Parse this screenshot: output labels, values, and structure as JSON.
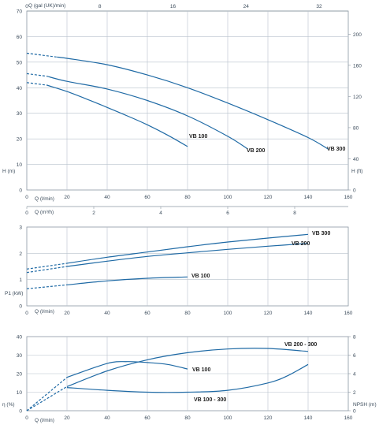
{
  "colors": {
    "curve": "#1f6aa5",
    "grid": "#b8c2cc",
    "text": "#3a4a5a"
  },
  "chart_data": [
    {
      "type": "line",
      "xlabel": "Q (l/min)",
      "ylabel": "H (m)",
      "y2label": "H (ft)",
      "top_xlabel": "Q (gal (UK)/min)",
      "bottom2_xlabel": "Q (m³/h)",
      "xlim": [
        0,
        160
      ],
      "ylim": [
        0,
        70
      ],
      "x_ticks": [
        "0",
        "20",
        "40",
        "60",
        "80",
        "100",
        "120",
        "140",
        "160"
      ],
      "y_ticks": [
        "0",
        "10",
        "20",
        "30",
        "40",
        "50",
        "60",
        "70"
      ],
      "y2_ticks": [
        "0",
        "40",
        "80",
        "120",
        "160",
        "200"
      ],
      "top_ticks": [
        "0",
        "8",
        "16",
        "24",
        "32"
      ],
      "bottom2_ticks": [
        "0",
        "2",
        "4",
        "6",
        "8"
      ],
      "series": [
        {
          "name": "VB 100",
          "dashed_until": 10,
          "x": [
            0,
            10,
            20,
            30,
            40,
            50,
            60,
            70,
            80
          ],
          "y": [
            42,
            41,
            38.5,
            35.5,
            32.3,
            29,
            25.5,
            21.5,
            17
          ]
        },
        {
          "name": "VB 200",
          "dashed_until": 10,
          "x": [
            0,
            10,
            20,
            40,
            60,
            80,
            100,
            110
          ],
          "y": [
            45.5,
            44.5,
            42.5,
            39.5,
            35,
            29,
            21,
            16
          ]
        },
        {
          "name": "VB 300",
          "dashed_until": 15,
          "x": [
            0,
            15,
            20,
            40,
            60,
            80,
            100,
            120,
            140,
            150
          ],
          "y": [
            53.5,
            52,
            51.5,
            49,
            45,
            40,
            34,
            27.5,
            20.5,
            16
          ]
        }
      ]
    },
    {
      "type": "line",
      "xlabel": "Q (l/min)",
      "ylabel": "P1 (kW)",
      "xlim": [
        0,
        160
      ],
      "ylim": [
        0,
        3
      ],
      "x_ticks": [
        "0",
        "20",
        "40",
        "60",
        "80",
        "100",
        "120",
        "140",
        "160"
      ],
      "y_ticks": [
        "0",
        "1",
        "2",
        "3"
      ],
      "series": [
        {
          "name": "VB 100",
          "dashed_until": 20,
          "x": [
            0,
            20,
            40,
            60,
            80
          ],
          "y": [
            0.65,
            0.8,
            0.95,
            1.05,
            1.1
          ]
        },
        {
          "name": "VB 200",
          "dashed_until": 20,
          "x": [
            0,
            20,
            40,
            60,
            80,
            100,
            120,
            140
          ],
          "y": [
            1.27,
            1.5,
            1.7,
            1.88,
            2.02,
            2.15,
            2.27,
            2.38
          ]
        },
        {
          "name": "VB 300",
          "dashed_until": 20,
          "x": [
            0,
            20,
            40,
            60,
            80,
            100,
            120,
            140
          ],
          "y": [
            1.4,
            1.62,
            1.85,
            2.05,
            2.25,
            2.43,
            2.58,
            2.72
          ]
        }
      ]
    },
    {
      "type": "line",
      "xlabel": "Q (l/min)",
      "ylabel": "η (%)",
      "y2label": "NPSH (m)",
      "xlim": [
        0,
        160
      ],
      "ylim": [
        0,
        40
      ],
      "y2lim": [
        0,
        8
      ],
      "x_ticks": [
        "0",
        "20",
        "40",
        "60",
        "80",
        "100",
        "120",
        "140",
        "160"
      ],
      "y_ticks": [
        "0",
        "10",
        "20",
        "30",
        "40"
      ],
      "y2_ticks": [
        "0",
        "2",
        "4",
        "6",
        "8"
      ],
      "series": [
        {
          "name": "VB 100",
          "dashed_until": 20,
          "x": [
            0,
            20,
            40,
            50,
            60,
            70,
            80
          ],
          "y": [
            0,
            18,
            25.5,
            26.5,
            26,
            25,
            22.5
          ]
        },
        {
          "name": "VB 200 - 300",
          "dashed_until": 20,
          "x": [
            0,
            20,
            40,
            60,
            80,
            100,
            120,
            140
          ],
          "y": [
            0,
            13,
            21.5,
            27.5,
            31.3,
            33.3,
            33.6,
            32
          ]
        },
        {
          "name": "VB 100 - 300",
          "axis": "y2",
          "x": [
            20,
            40,
            60,
            80,
            100,
            120,
            130,
            140
          ],
          "y": [
            2.5,
            2.2,
            2,
            2,
            2.2,
            3,
            3.8,
            5
          ]
        }
      ]
    }
  ]
}
